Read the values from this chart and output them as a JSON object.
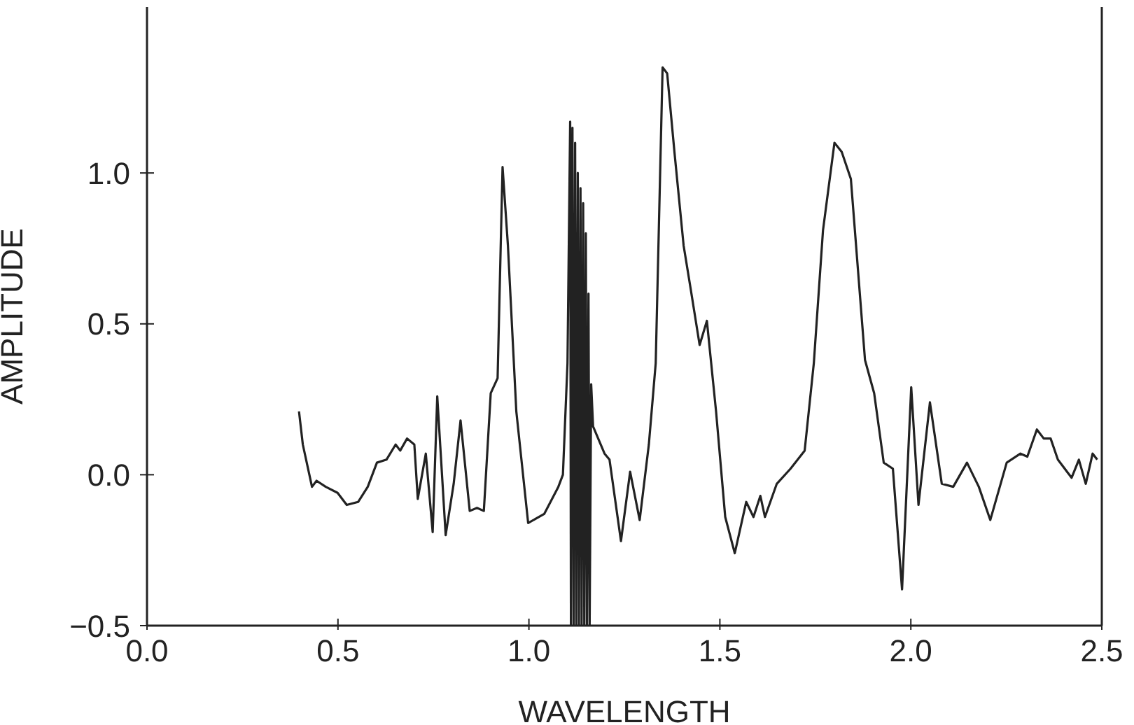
{
  "chart_data": {
    "type": "line",
    "xlabel": "WAVELENGTH",
    "ylabel": "AMPLITUDE",
    "xlim": [
      0,
      2.5
    ],
    "xticks": [
      {
        "value": 0,
        "label": "0.0"
      },
      {
        "value": 0.5,
        "label": "0.5"
      },
      {
        "value": 1,
        "label": "1.0"
      },
      {
        "value": 1.5,
        "label": "1.5"
      },
      {
        "value": 2,
        "label": "2.0"
      },
      {
        "value": 2.5,
        "label": "2.5"
      }
    ],
    "ylim": [
      -0.5,
      1.55
    ],
    "yticks": [
      {
        "value": -0.5,
        "label": "−0.5"
      },
      {
        "value": 0,
        "label": "0.0"
      },
      {
        "value": 0.5,
        "label": "0.5"
      },
      {
        "value": 1,
        "label": "1.0"
      }
    ],
    "grid": false,
    "legend": false,
    "marker": "none",
    "line_style": "solid",
    "series": [
      {
        "color": "#222222",
        "x": [
          0.398,
          0.408,
          0.432,
          0.444,
          0.468,
          0.499,
          0.523,
          0.553,
          0.578,
          0.602,
          0.627,
          0.651,
          0.663,
          0.681,
          0.7,
          0.709,
          0.73,
          0.748,
          0.76,
          0.782,
          0.803,
          0.821,
          0.845,
          0.864,
          0.882,
          0.9,
          0.918,
          0.931,
          0.945,
          0.967,
          0.998,
          1.04,
          1.077,
          1.089,
          1.101,
          1.108,
          1.11,
          1.114,
          1.117,
          1.121,
          1.124,
          1.128,
          1.131,
          1.135,
          1.138,
          1.142,
          1.145,
          1.149,
          1.152,
          1.156,
          1.159,
          1.163,
          1.168,
          1.198,
          1.211,
          1.241,
          1.265,
          1.29,
          1.314,
          1.332,
          1.35,
          1.362,
          1.381,
          1.405,
          1.423,
          1.447,
          1.466,
          1.49,
          1.514,
          1.539,
          1.569,
          1.588,
          1.606,
          1.618,
          1.649,
          1.685,
          1.722,
          1.746,
          1.77,
          1.8,
          1.819,
          1.843,
          1.88,
          1.904,
          1.929,
          1.953,
          1.977,
          2.001,
          2.02,
          2.05,
          2.081,
          2.111,
          2.147,
          2.178,
          2.208,
          2.251,
          2.287,
          2.305,
          2.33,
          2.348,
          2.366,
          2.385,
          2.403,
          2.421,
          2.44,
          2.458,
          2.476,
          2.488
        ],
        "values": [
          0.21,
          0.1,
          -0.04,
          -0.02,
          -0.04,
          -0.06,
          -0.1,
          -0.09,
          -0.04,
          0.04,
          0.05,
          0.1,
          0.08,
          0.12,
          0.1,
          -0.08,
          0.07,
          -0.19,
          0.26,
          -0.2,
          -0.03,
          0.18,
          -0.12,
          -0.11,
          -0.12,
          0.27,
          0.32,
          1.02,
          0.76,
          0.21,
          -0.16,
          -0.13,
          -0.04,
          0,
          0.37,
          1.17,
          -0.5,
          1.15,
          -0.5,
          1.1,
          -0.5,
          1.0,
          -0.5,
          0.95,
          -0.5,
          0.9,
          -0.5,
          0.8,
          -0.5,
          0.6,
          -0.5,
          0.3,
          0.16,
          0.07,
          0.05,
          -0.22,
          0.01,
          -0.15,
          0.1,
          0.37,
          1.35,
          1.33,
          1.07,
          0.76,
          0.62,
          0.43,
          0.51,
          0.21,
          -0.14,
          -0.26,
          -0.09,
          -0.14,
          -0.07,
          -0.14,
          -0.03,
          0.02,
          0.08,
          0.37,
          0.81,
          1.1,
          1.07,
          0.98,
          0.38,
          0.27,
          0.04,
          0.02,
          -0.38,
          0.29,
          -0.1,
          0.24,
          -0.03,
          -0.04,
          0.04,
          -0.04,
          -0.15,
          0.04,
          0.07,
          0.06,
          0.15,
          0.12,
          0.12,
          0.05,
          0.02,
          -0.01,
          0.05,
          -0.03,
          0.07,
          0.05
        ]
      }
    ]
  }
}
